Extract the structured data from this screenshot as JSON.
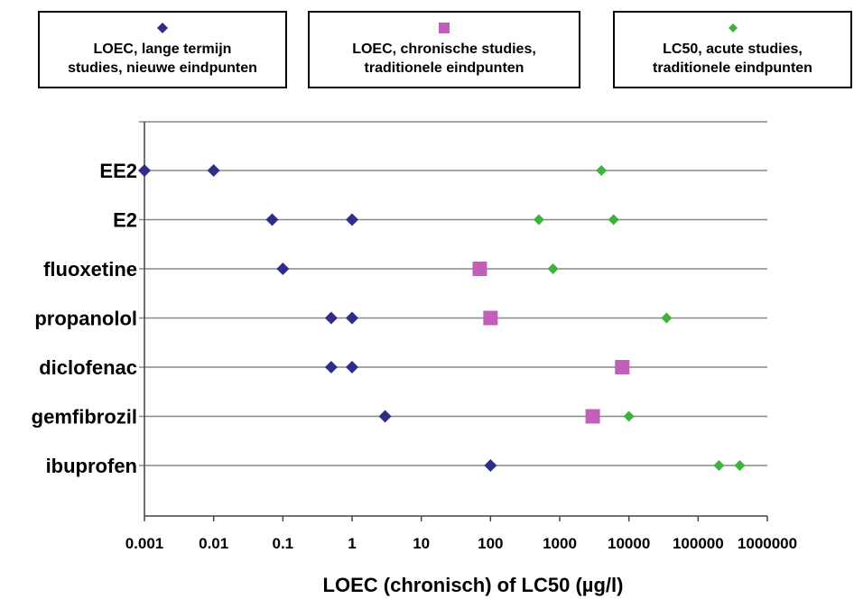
{
  "legend": [
    {
      "line1": "LOEC, lange termijn",
      "line2": "studies, nieuwe eindpunten",
      "marker": "diamond",
      "color": "#2e2e8a"
    },
    {
      "line1": "LOEC, chronische studies,",
      "line2": "traditionele eindpunten",
      "marker": "square",
      "color": "#c25fb8"
    },
    {
      "line1": "LC50, acute studies,",
      "line2": "traditionele eindpunten",
      "marker": "diamond-small",
      "color": "#3cb43c"
    }
  ],
  "chart_data": {
    "type": "scatter",
    "title": "",
    "xlabel": "LOEC (chronisch) of LC50 (µg/l)",
    "ylabel": "",
    "xscale": "log",
    "xlim": [
      0.001,
      1000000
    ],
    "x_tick_labels": [
      "0.001",
      "0.01",
      "0.1",
      "1",
      "10",
      "100",
      "1000",
      "10000",
      "100000",
      "1000000"
    ],
    "categories": [
      "EE2",
      "E2",
      "fluoxetine",
      "propanolol",
      "diclofenac",
      "gemfibrozil",
      "ibuprofen"
    ],
    "grid": "horizontal lines per category",
    "legend_position": "top",
    "series": [
      {
        "name": "LOEC, lange termijn studies, nieuwe eindpunten",
        "marker": "diamond",
        "color": "#2e2e8a",
        "points": [
          {
            "category": "EE2",
            "x": 0.001
          },
          {
            "category": "EE2",
            "x": 0.01
          },
          {
            "category": "E2",
            "x": 0.07
          },
          {
            "category": "E2",
            "x": 1
          },
          {
            "category": "fluoxetine",
            "x": 0.1
          },
          {
            "category": "propanolol",
            "x": 0.5
          },
          {
            "category": "propanolol",
            "x": 1
          },
          {
            "category": "diclofenac",
            "x": 0.5
          },
          {
            "category": "diclofenac",
            "x": 1
          },
          {
            "category": "gemfibrozil",
            "x": 3
          },
          {
            "category": "ibuprofen",
            "x": 100
          }
        ]
      },
      {
        "name": "LOEC, chronische studies, traditionele eindpunten",
        "marker": "square",
        "color": "#c25fb8",
        "points": [
          {
            "category": "fluoxetine",
            "x": 70
          },
          {
            "category": "propanolol",
            "x": 100
          },
          {
            "category": "diclofenac",
            "x": 8000
          },
          {
            "category": "gemfibrozil",
            "x": 3000
          }
        ]
      },
      {
        "name": "LC50, acute studies, traditionele eindpunten",
        "marker": "diamond-small",
        "color": "#3cb43c",
        "points": [
          {
            "category": "EE2",
            "x": 4000
          },
          {
            "category": "E2",
            "x": 500
          },
          {
            "category": "E2",
            "x": 6000
          },
          {
            "category": "fluoxetine",
            "x": 800
          },
          {
            "category": "propanolol",
            "x": 35000
          },
          {
            "category": "gemfibrozil",
            "x": 10000
          },
          {
            "category": "ibuprofen",
            "x": 200000
          },
          {
            "category": "ibuprofen",
            "x": 400000
          }
        ]
      }
    ]
  }
}
